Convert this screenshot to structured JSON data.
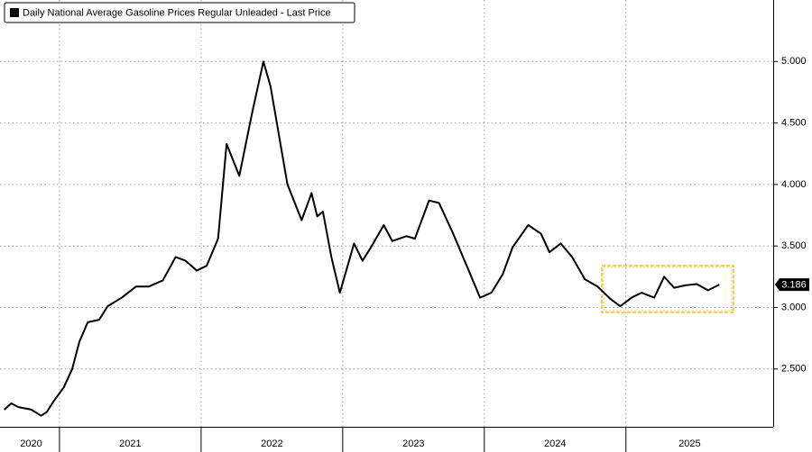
{
  "chart_data": {
    "type": "line",
    "title": "Daily National Average Gasoline Prices Regular Unleaded - Last Price",
    "x": [
      2020.61,
      2020.66,
      2020.71,
      2020.8,
      2020.87,
      2020.91,
      2020.96,
      2021.03,
      2021.09,
      2021.14,
      2021.2,
      2021.28,
      2021.34,
      2021.44,
      2021.54,
      2021.63,
      2021.73,
      2021.82,
      2021.89,
      2021.97,
      2022.04,
      2022.12,
      2022.18,
      2022.27,
      2022.36,
      2022.44,
      2022.49,
      2022.61,
      2022.71,
      2022.78,
      2022.82,
      2022.86,
      2022.92,
      2022.98,
      2023.08,
      2023.14,
      2023.2,
      2023.29,
      2023.35,
      2023.45,
      2023.51,
      2023.61,
      2023.68,
      2023.78,
      2023.89,
      2023.97,
      2024.05,
      2024.13,
      2024.2,
      2024.31,
      2024.4,
      2024.46,
      2024.54,
      2024.62,
      2024.71,
      2024.8,
      2024.89,
      2024.96,
      2025.04,
      2025.11,
      2025.2,
      2025.27,
      2025.34,
      2025.42,
      2025.5,
      2025.58,
      2025.66
    ],
    "series": [
      {
        "name": "Daily National Average Gasoline Prices Regular Unleaded - Last Price",
        "color": "#000000",
        "values": [
          2.17,
          2.22,
          2.19,
          2.17,
          2.12,
          2.15,
          2.24,
          2.35,
          2.5,
          2.72,
          2.88,
          2.9,
          3.01,
          3.08,
          3.17,
          3.17,
          3.22,
          3.41,
          3.38,
          3.3,
          3.34,
          3.56,
          4.33,
          4.07,
          4.58,
          5.0,
          4.8,
          4.0,
          3.71,
          3.93,
          3.74,
          3.78,
          3.41,
          3.12,
          3.52,
          3.38,
          3.49,
          3.67,
          3.54,
          3.58,
          3.56,
          3.87,
          3.85,
          3.6,
          3.3,
          3.08,
          3.12,
          3.27,
          3.49,
          3.67,
          3.6,
          3.45,
          3.52,
          3.41,
          3.23,
          3.17,
          3.07,
          3.01,
          3.08,
          3.12,
          3.08,
          3.25,
          3.16,
          3.18,
          3.19,
          3.14,
          3.186
        ]
      }
    ],
    "last_price_label": "3.186",
    "xlim": [
      2020.58,
      2026.04
    ],
    "xticks": [
      {
        "value": 2020.8,
        "label": "2020"
      },
      {
        "value": 2021.5,
        "label": "2021"
      },
      {
        "value": 2022.5,
        "label": "2022"
      },
      {
        "value": 2023.5,
        "label": "2023"
      },
      {
        "value": 2024.5,
        "label": "2024"
      },
      {
        "value": 2025.45,
        "label": "2025"
      }
    ],
    "x_separators": [
      2021,
      2022,
      2023,
      2024,
      2025
    ],
    "ylim": [
      2.03,
      5.5
    ],
    "yticks": [
      {
        "value": 2.5,
        "label": "2.500"
      },
      {
        "value": 3,
        "label": "3.000"
      },
      {
        "value": 3.5,
        "label": "3.500"
      },
      {
        "value": 4,
        "label": "4.000"
      },
      {
        "value": 4.5,
        "label": "4.500"
      },
      {
        "value": 5,
        "label": "5.000"
      }
    ],
    "grid": true
  }
}
